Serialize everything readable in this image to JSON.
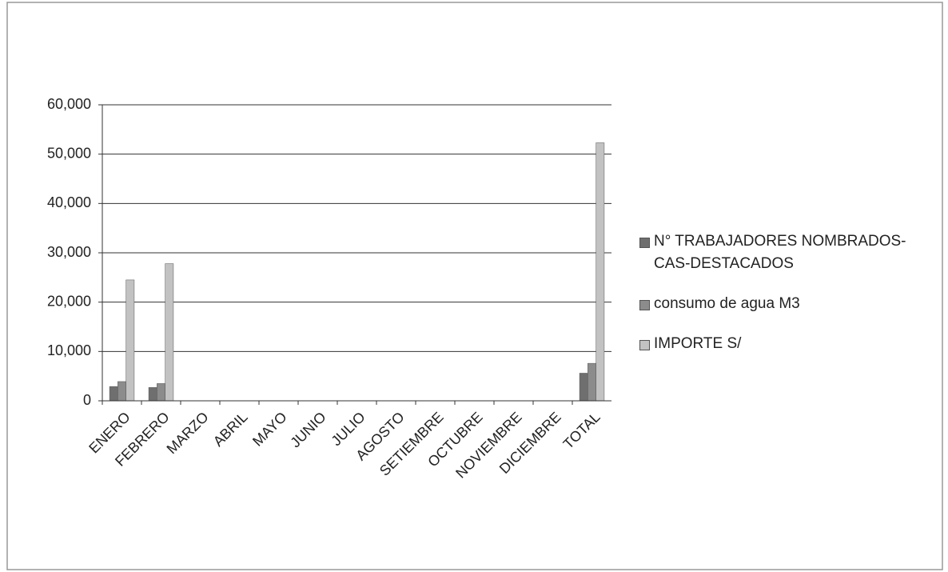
{
  "chart_data": {
    "type": "bar",
    "categories": [
      "ENERO",
      "FEBRERO",
      "MARZO",
      "ABRIL",
      "MAYO",
      "JUNIO",
      "JULIO",
      "AGOSTO",
      "SETIEMBRE",
      "OCTUBRE",
      "NOVIEMBRE",
      "DICIEMBRE",
      "TOTAL"
    ],
    "series": [
      {
        "name": "N° TRABAJADORES NOMBRADOS-CAS-DESTACADOS",
        "color": "#6f6f6f",
        "values": [
          2900,
          2700,
          0,
          0,
          0,
          0,
          0,
          0,
          0,
          0,
          0,
          0,
          5600
        ]
      },
      {
        "name": "consumo de agua M3",
        "color": "#8c8c8c",
        "values": [
          3900,
          3500,
          0,
          0,
          0,
          0,
          0,
          0,
          0,
          0,
          0,
          0,
          7600
        ]
      },
      {
        "name": "IMPORTE S/",
        "color": "#c2c2c2",
        "values": [
          24500,
          27800,
          0,
          0,
          0,
          0,
          0,
          0,
          0,
          0,
          0,
          0,
          52300
        ]
      }
    ],
    "ylim": [
      0,
      60000
    ],
    "yticks": [
      0,
      {
        "value": 10000,
        "label": "10,000"
      },
      {
        "value": 20000,
        "label": "20,000"
      },
      {
        "value": 30000,
        "label": "30,000"
      },
      {
        "value": 40000,
        "label": "40,000"
      },
      {
        "value": 50000,
        "label": "50,000"
      },
      {
        "value": 60000,
        "label": "60,000"
      }
    ],
    "grid": true,
    "legend": "right"
  }
}
